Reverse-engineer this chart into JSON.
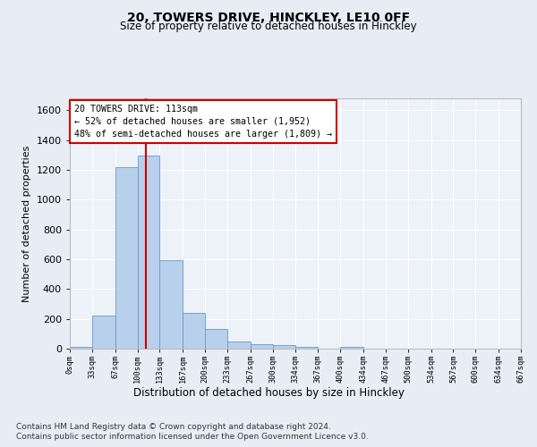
{
  "title1": "20, TOWERS DRIVE, HINCKLEY, LE10 0FF",
  "title2": "Size of property relative to detached houses in Hinckley",
  "xlabel": "Distribution of detached houses by size in Hinckley",
  "ylabel": "Number of detached properties",
  "footer1": "Contains HM Land Registry data © Crown copyright and database right 2024.",
  "footer2": "Contains public sector information licensed under the Open Government Licence v3.0.",
  "annotation_line1": "20 TOWERS DRIVE: 113sqm",
  "annotation_line2": "← 52% of detached houses are smaller (1,952)",
  "annotation_line3": "48% of semi-detached houses are larger (1,809) →",
  "bar_color": "#b8d0eb",
  "bar_edge_color": "#6699cc",
  "vline_color": "#cc0000",
  "vline_x": 113,
  "bg_color": "#e8edf5",
  "plot_bg_color": "#edf1f8",
  "grid_color": "#ffffff",
  "bin_edges": [
    0,
    33,
    67,
    100,
    133,
    167,
    200,
    233,
    267,
    300,
    334,
    367,
    400,
    434,
    467,
    500,
    534,
    567,
    600,
    634,
    667
  ],
  "bin_counts": [
    10,
    220,
    1220,
    1295,
    595,
    240,
    135,
    50,
    30,
    25,
    10,
    0,
    15,
    0,
    0,
    0,
    0,
    0,
    0,
    0
  ],
  "ylim": [
    0,
    1680
  ],
  "xlim": [
    0,
    667
  ],
  "yticks": [
    0,
    200,
    400,
    600,
    800,
    1000,
    1200,
    1400,
    1600
  ],
  "tick_labels": [
    "0sqm",
    "33sqm",
    "67sqm",
    "100sqm",
    "133sqm",
    "167sqm",
    "200sqm",
    "233sqm",
    "267sqm",
    "300sqm",
    "334sqm",
    "367sqm",
    "400sqm",
    "434sqm",
    "467sqm",
    "500sqm",
    "534sqm",
    "567sqm",
    "600sqm",
    "634sqm",
    "667sqm"
  ],
  "tick_positions": [
    0,
    33,
    67,
    100,
    133,
    167,
    200,
    233,
    267,
    300,
    334,
    367,
    400,
    434,
    467,
    500,
    534,
    567,
    600,
    634,
    667
  ]
}
